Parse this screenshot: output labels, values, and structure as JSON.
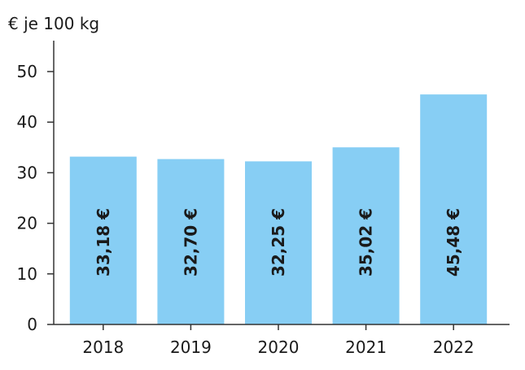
{
  "chart_data": {
    "type": "bar",
    "ylabel": "€ je 100 kg",
    "categories": [
      "2018",
      "2019",
      "2020",
      "2021",
      "2022"
    ],
    "values": [
      33.18,
      32.7,
      32.25,
      35.02,
      45.48
    ],
    "data_labels": [
      "33,18 €",
      "32,70 €",
      "32,25 €",
      "35,02 €",
      "45,48 €"
    ],
    "ylim": [
      0,
      55
    ],
    "yticks": [
      0,
      10,
      20,
      30,
      40,
      50
    ],
    "grid": false,
    "legend": "none",
    "colors": {
      "bar": "#87cef4",
      "axis": "#333333",
      "text": "#1a1a1a"
    }
  }
}
